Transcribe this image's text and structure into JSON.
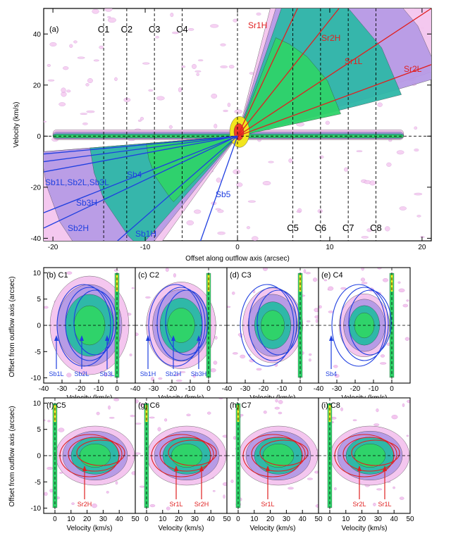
{
  "chart_data": [
    {
      "type": "contour",
      "panel": "(a)",
      "xlabel": "Offset along outflow axis (arcsec)",
      "ylabel": "Velocity (km/s)",
      "xlim": [
        -21,
        21
      ],
      "ylim": [
        -41,
        50
      ],
      "xticks": [
        "-20",
        "-10",
        "0",
        "10",
        "20"
      ],
      "yticks": [
        "-40",
        "-20",
        "0",
        "20",
        "40"
      ],
      "cuts": [
        {
          "name": "C1",
          "x": -14.5
        },
        {
          "name": "C2",
          "x": -12
        },
        {
          "name": "C3",
          "x": -9
        },
        {
          "name": "C4",
          "x": -6
        },
        {
          "name": "C5",
          "x": 6
        },
        {
          "name": "C6",
          "x": 9
        },
        {
          "name": "C7",
          "x": 12
        },
        {
          "name": "C8",
          "x": 15
        }
      ],
      "red_lines": [
        {
          "name": "Sr1H",
          "end": [
            6.5,
            50
          ]
        },
        {
          "name": "Sr2H",
          "end": [
            11,
            50
          ]
        },
        {
          "name": "Sr1L",
          "end": [
            21,
            50
          ]
        },
        {
          "name": "Sr2L",
          "end": [
            21,
            28
          ]
        }
      ],
      "blue_lines": [
        {
          "name": "Sb1L",
          "end": [
            -21,
            -7
          ]
        },
        {
          "name": "Sb2L",
          "end": [
            -21,
            -10
          ]
        },
        {
          "name": "Sb3L",
          "end": [
            -21,
            -14
          ]
        },
        {
          "name": "Sb3H",
          "end": [
            -21,
            -30
          ]
        },
        {
          "name": "Sb2H",
          "end": [
            -21,
            -36
          ]
        },
        {
          "name": "Sb1H",
          "end": [
            -13,
            -41
          ]
        },
        {
          "name": "Sb5",
          "end": [
            -4,
            -41
          ]
        }
      ],
      "labels": {
        "panel": "(a)",
        "Sr1H": "Sr1H",
        "Sr2H": "Sr2H",
        "Sr1L": "Sr1L",
        "Sr2L": "Sr2L",
        "Sb1L_group": "Sb1L,Sb2L,Sb3L",
        "Sb4": "Sb4",
        "Sb5": "Sb5",
        "Sb3H": "Sb3H",
        "Sb2H": "Sb2H",
        "Sb1H": "Sb1H"
      }
    },
    {
      "type": "contour-grid",
      "row": "blue",
      "xlabel": "Velocity (km/s)",
      "ylabel": "Offset from outflow axis (arcsec)",
      "xlim": [
        -40,
        10
      ],
      "ylim": [
        -11,
        11
      ],
      "xticks": [
        "-40",
        "-30",
        "-20",
        "-10",
        "0"
      ],
      "yticks": [
        "-10",
        "-5",
        "0",
        "5",
        "10"
      ],
      "panels": [
        {
          "label": "(b) C1",
          "annotations": [
            "Sb1L",
            "Sb2L",
            "Sb3L"
          ]
        },
        {
          "label": "(c) C2",
          "annotations": [
            "Sb1H",
            "Sb2H",
            "Sb3H"
          ]
        },
        {
          "label": "(d) C3",
          "annotations": []
        },
        {
          "label": "(e) C4",
          "annotations": [
            "Sb4"
          ]
        }
      ]
    },
    {
      "type": "contour-grid",
      "row": "red",
      "xlabel": "Velocity (km/s)",
      "ylabel": "Offset from outflow axis (arcsec)",
      "xlim": [
        -7,
        50
      ],
      "ylim": [
        -11,
        11
      ],
      "xticks": [
        "0",
        "10",
        "20",
        "30",
        "40",
        "50"
      ],
      "yticks": [
        "-10",
        "-5",
        "0",
        "5",
        "10"
      ],
      "panels": [
        {
          "label": "(f) C5",
          "annotations": [
            "Sr2H"
          ]
        },
        {
          "label": "(g) C6",
          "annotations": [
            "Sr1L",
            "Sr2H"
          ]
        },
        {
          "label": "(h) C7",
          "annotations": [
            "Sr1L"
          ]
        },
        {
          "label": "(i) C8",
          "annotations": [
            "Sr2L",
            "Sr1L"
          ]
        }
      ]
    }
  ],
  "colors": {
    "blue": "#1f3fe0",
    "red": "#e02020",
    "contour_outer": "#f4c6ef",
    "contour_mid": "#b79be6",
    "contour_teal": "#2fb8a8",
    "contour_green": "#2fd36a",
    "contour_yellow": "#f2e51e",
    "contour_red": "#ef3a2a"
  }
}
